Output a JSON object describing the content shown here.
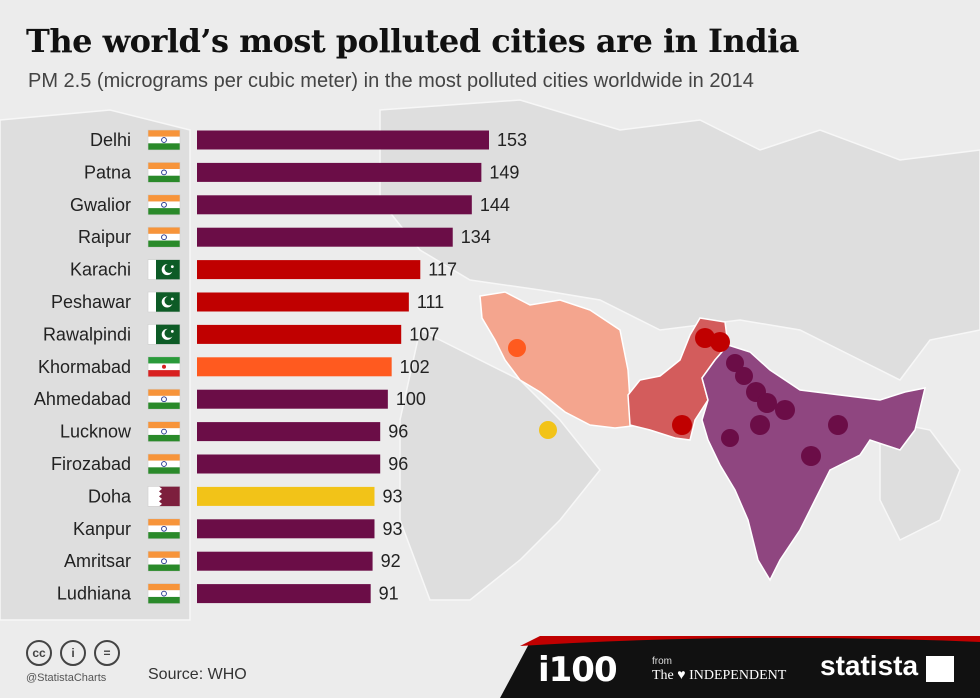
{
  "title": "The world’s most polluted cities are in India",
  "subtitle": "PM 2.5 (micrograms per cubic meter) in the most polluted cities worldwide in 2014",
  "colors": {
    "india": "#6b0d47",
    "pakistan": "#c00000",
    "iran": "#ff5a1f",
    "qatar": "#f2c318",
    "map_india": "#8f4680",
    "map_pakistan": "#d35c5c",
    "map_iran": "#f4a58e"
  },
  "chart_data": {
    "type": "bar",
    "orientation": "horizontal",
    "categories": [
      "Delhi",
      "Patna",
      "Gwalior",
      "Raipur",
      "Karachi",
      "Peshawar",
      "Rawalpindi",
      "Khormabad",
      "Ahmedabad",
      "Lucknow",
      "Firozabad",
      "Doha",
      "Kanpur",
      "Amritsar",
      "Ludhiana"
    ],
    "values": [
      153,
      149,
      144,
      134,
      117,
      111,
      107,
      102,
      100,
      96,
      96,
      93,
      93,
      92,
      91
    ],
    "countries": [
      "India",
      "India",
      "India",
      "India",
      "Pakistan",
      "Pakistan",
      "Pakistan",
      "Iran",
      "India",
      "India",
      "India",
      "Qatar",
      "India",
      "India",
      "India"
    ],
    "flag_icons": [
      "flag-india-icon",
      "flag-india-icon",
      "flag-india-icon",
      "flag-india-icon",
      "flag-pakistan-icon",
      "flag-pakistan-icon",
      "flag-pakistan-icon",
      "flag-iran-icon",
      "flag-india-icon",
      "flag-india-icon",
      "flag-india-icon",
      "flag-qatar-icon",
      "flag-india-icon",
      "flag-india-icon",
      "flag-india-icon"
    ],
    "xlim": [
      0,
      153
    ],
    "grid": false,
    "legend": "none"
  },
  "footer": {
    "license_icons": [
      "cc-icon",
      "by-icon",
      "nd-icon"
    ],
    "license_glyphs": [
      "cc",
      "i",
      "="
    ],
    "handle": "@StatistaCharts",
    "source": "Source: WHO",
    "brand_i100": "i100",
    "brand_from": "from",
    "brand_independent": "The ♥ INDEPENDENT",
    "brand_statista": "statista"
  }
}
